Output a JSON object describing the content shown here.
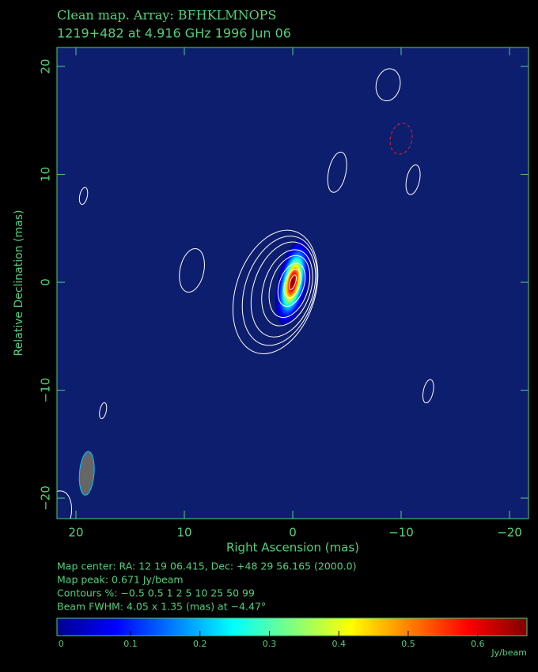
{
  "chart_data": {
    "type": "contour",
    "title": "Clean map.  Array: BFHKLMNOPS",
    "subtitle": "1219+482 at 4.916 GHz 1996 Jun 06",
    "xlabel": "Right Ascension  (mas)",
    "ylabel": "Relative Declination  (mas)",
    "xlim": [
      21.75,
      -21.75
    ],
    "ylim": [
      -21.9,
      21.76
    ],
    "xticks": [
      20,
      10,
      0,
      {
        "value": -10,
        "label": "−10"
      },
      {
        "value": -20,
        "label": "−20"
      }
    ],
    "yticks": [
      {
        "value": -20,
        "label": "−20"
      },
      {
        "value": -10,
        "label": "−10"
      },
      0,
      10,
      20
    ],
    "info": [
      "Map center:  RA: 12 19 06.415,  Dec: +48 29 56.165 (2000.0)",
      "Map peak: 0.671 Jy/beam",
      "Contours %: −0.5 0.5 1 2 5 10 25 50 99",
      "Beam FWHM: 4.05 x 1.35 (mas) at −4.47°"
    ],
    "peak": 0.671,
    "contour_levels": [
      -0.5,
      0.5,
      1,
      2,
      5,
      10,
      25,
      50,
      99
    ],
    "islands": [
      {
        "x": -8.8,
        "y": 18.3,
        "width": 2.2,
        "height": 3.0,
        "level": 0.5
      },
      {
        "x": -10.0,
        "y": 13.3,
        "width": 2.0,
        "height": 2.9,
        "level": -0.5
      },
      {
        "x": -4.1,
        "y": 10.2,
        "width": 1.6,
        "height": 3.8,
        "level": 0.5
      },
      {
        "x": -11.1,
        "y": 9.5,
        "width": 1.2,
        "height": 2.8,
        "level": 0.5
      },
      {
        "x": 19.3,
        "y": 8.0,
        "width": 0.7,
        "height": 1.6,
        "level": 0.5
      },
      {
        "x": 9.3,
        "y": 1.1,
        "width": 2.2,
        "height": 4.1,
        "level": 0.5
      },
      {
        "x": -12.5,
        "y": -10.1,
        "width": 0.9,
        "height": 2.2,
        "level": 0.5
      },
      {
        "x": 17.5,
        "y": -11.9,
        "width": 0.6,
        "height": 1.5,
        "level": 0.5
      },
      {
        "x": 21.75,
        "y": -21.5,
        "width": 2.6,
        "height": 4.4,
        "level": 0.5
      }
    ],
    "beam": {
      "x": 19,
      "y": -17.7,
      "major": 4.05,
      "minor": 1.35,
      "angle": -4.47
    },
    "colorbar": {
      "lim": [
        -0.006,
        0.671
      ],
      "ticks": [
        0,
        0.1,
        0.2,
        0.3,
        0.4,
        0.5,
        0.6
      ],
      "label": "Jy/beam"
    }
  }
}
